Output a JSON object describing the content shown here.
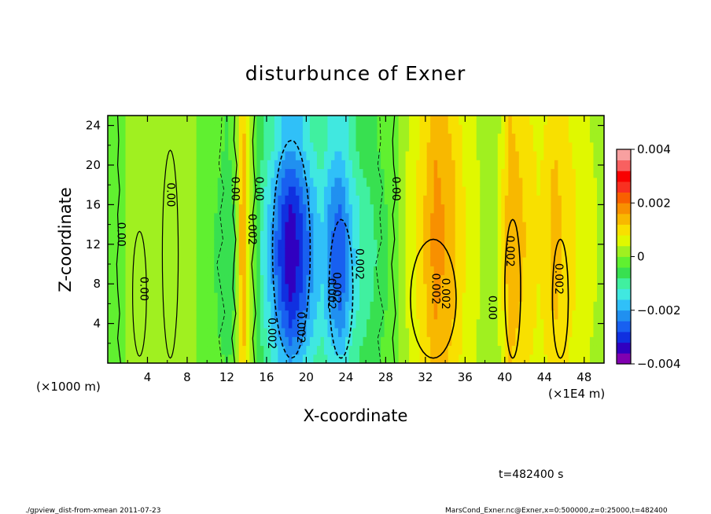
{
  "chart_data": {
    "type": "heatmap",
    "title": "disturbunce of Exner",
    "xlabel": "X-coordinate",
    "ylabel": "Z-coordinate",
    "x_unit_left": "(×1000 m)",
    "x_unit_right": "(×1E4 m)",
    "xlim": [
      0,
      50
    ],
    "ylim": [
      0,
      25
    ],
    "x_ticks": [
      "4",
      "8",
      "12",
      "16",
      "20",
      "24",
      "28",
      "32",
      "36",
      "40",
      "44",
      "48"
    ],
    "x_tick_values": [
      4,
      8,
      12,
      16,
      20,
      24,
      28,
      32,
      36,
      40,
      44,
      48
    ],
    "y_ticks": [
      "4",
      "8",
      "12",
      "16",
      "20",
      "24"
    ],
    "y_tick_values": [
      4,
      8,
      12,
      16,
      20,
      24
    ],
    "colorbar": {
      "range": [
        -0.004,
        0.004
      ],
      "tick_labels": [
        "0.004",
        "0.002",
        "0",
        "−0.002",
        "−0.004"
      ],
      "tick_values": [
        0.004,
        0.002,
        0,
        -0.002,
        -0.004
      ],
      "colors": [
        "#8000b0",
        "#3000c0",
        "#1030e0",
        "#1860f0",
        "#2090f0",
        "#30c0f8",
        "#40e8e0",
        "#40f0a0",
        "#38e050",
        "#60f030",
        "#a0f020",
        "#e0f800",
        "#f8e000",
        "#f8b800",
        "#f89000",
        "#f86000",
        "#f83020",
        "#f80000",
        "#f86060",
        "#f8a0a0"
      ]
    },
    "profile": {
      "x": [
        0,
        1.5,
        3,
        4.5,
        6,
        7.5,
        9,
        10.5,
        12,
        12.8,
        13.6,
        14.4,
        15.5,
        16.5,
        17.5,
        18.5,
        19.5,
        20.5,
        21.5,
        22.5,
        23.5,
        24.5,
        25.5,
        27,
        28.5,
        30,
        31.5,
        33,
        34.5,
        36,
        37.5,
        39,
        40.5,
        42,
        43.5,
        45,
        46.5,
        48,
        50
      ],
      "values": [
        0.0,
        -0.0001,
        0.0003,
        0.0,
        0.0004,
        0.0001,
        0.0,
        -0.0003,
        -0.0008,
        -0.0004,
        0.0018,
        0.0002,
        -0.0012,
        -0.002,
        -0.003,
        -0.0036,
        -0.003,
        -0.0022,
        -0.0016,
        -0.0024,
        -0.0028,
        -0.0018,
        -0.0012,
        -0.0008,
        -0.0003,
        0.0004,
        0.001,
        0.0018,
        0.0015,
        0.0008,
        0.0004,
        0.0,
        0.0016,
        0.0012,
        0.0008,
        0.0014,
        0.001,
        0.0006,
        0.0003
      ]
    },
    "contour_labels": [
      "0.00",
      "0.00",
      "0.00",
      "0.00",
      "0.00",
      "0.00",
      "0.002",
      "0.002",
      "0.002",
      "0.002",
      "0.002",
      "0.002",
      "0.002",
      "0.002",
      "0.00",
      "0.002",
      "0.002"
    ]
  },
  "time_label": "t=482400 s",
  "footer_left": "./gpview_dist-from-xmean   2011-07-23",
  "footer_right": "MarsCond_Exner.nc@Exner,x=0:500000,z=0:25000,t=482400"
}
